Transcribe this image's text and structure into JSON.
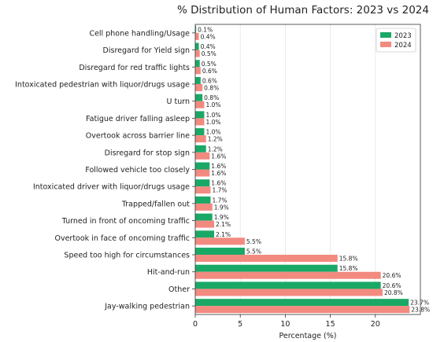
{
  "chart_data": {
    "type": "bar",
    "orientation": "horizontal",
    "title": "% Distribution of Human Factors: 2023 vs 2024",
    "xlabel": "Percentage (%)",
    "ylabel": "",
    "xlim": [
      0,
      25
    ],
    "xticks": [
      0,
      5,
      10,
      15,
      20
    ],
    "grid": true,
    "legend_position": "top-right",
    "categories": [
      "Cell phone handling/Usage",
      "Disregard for Yield sign",
      "Disregard for red traffic lights",
      "Intoxicated pedestrian with liquor/drugs usage",
      "U turn",
      "Fatigue driver falling asleep",
      "Overtook across barrier line",
      "Disregard for stop sign",
      "Followed vehicle too closely",
      "Intoxicated driver with liquor/drugs usage",
      "Trapped/fallen out",
      "Turned in front of oncoming traffic",
      "Overtook in face of oncoming traffic",
      "Speed too high for circumstances",
      "Hit-and-run",
      "Other",
      "Jay-walking pedestrian"
    ],
    "series": [
      {
        "name": "2023",
        "color": "#1aa866",
        "values": [
          0.1,
          0.4,
          0.5,
          0.6,
          0.8,
          1.0,
          1.0,
          1.2,
          1.6,
          1.6,
          1.7,
          1.9,
          2.1,
          5.5,
          15.8,
          20.6,
          23.7
        ],
        "labels": [
          "0.1%",
          "0.4%",
          "0.5%",
          "0.6%",
          "0.8%",
          "1.0%",
          "1.0%",
          "1.2%",
          "1.6%",
          "1.6%",
          "1.7%",
          "1.9%",
          "2.1%",
          "5.5%",
          "15.8%",
          "20.6%",
          "23.7%"
        ]
      },
      {
        "name": "2024",
        "color": "#f28a80",
        "values": [
          0.4,
          0.5,
          0.6,
          0.8,
          1.0,
          1.0,
          1.2,
          1.6,
          1.6,
          1.7,
          1.9,
          2.1,
          5.5,
          15.8,
          20.6,
          20.8,
          23.8
        ],
        "labels": [
          "0.4%",
          "0.5%",
          "0.6%",
          "0.8%",
          "1.0%",
          "1.0%",
          "1.2%",
          "1.6%",
          "1.6%",
          "1.7%",
          "1.9%",
          "2.1%",
          "5.5%",
          "15.8%",
          "20.6%",
          "20.8%",
          "23.8%"
        ]
      }
    ]
  }
}
